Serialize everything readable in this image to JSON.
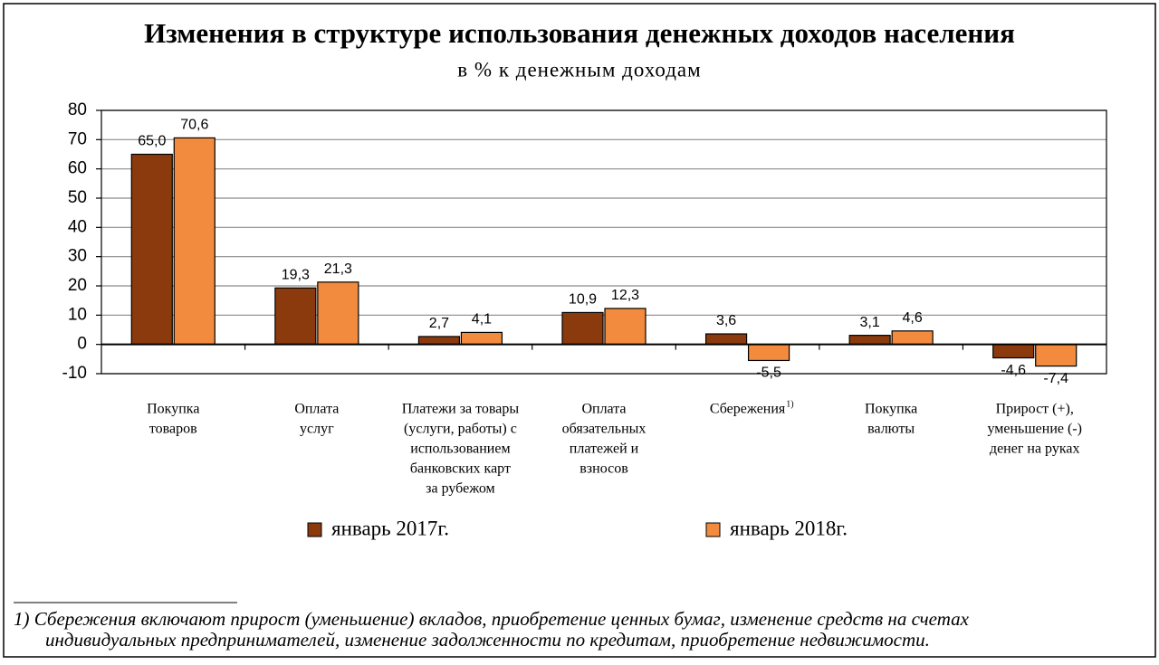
{
  "chart_data": {
    "type": "bar",
    "title": "Изменения в структуре использования денежных доходов населения",
    "subtitle": "в % к денежным доходам",
    "categories": [
      [
        "Покупка",
        "товаров"
      ],
      [
        "Оплата",
        "услуг"
      ],
      [
        "Платежи за товары",
        "(услуги, работы) с",
        "использованием",
        "банковских карт",
        "за рубежом"
      ],
      [
        "Оплата",
        "обязательных",
        "платежей и",
        "взносов"
      ],
      [
        "Сбережения"
      ],
      [
        "Покупка",
        "валюты"
      ],
      [
        "Прирост (+),",
        "уменьшение (-)",
        "денег на руках"
      ]
    ],
    "category_notes": [
      null,
      null,
      null,
      null,
      "1)",
      null,
      null
    ],
    "series": [
      {
        "name": "январь 2017г.",
        "color": "#8b3a0e",
        "values": [
          65.0,
          19.3,
          2.7,
          10.9,
          3.6,
          3.1,
          -4.6
        ],
        "value_labels": [
          "65,0",
          "19,3",
          "2,7",
          "10,9",
          "3,6",
          "3,1",
          "-4,6"
        ]
      },
      {
        "name": "январь 2018г.",
        "color": "#f28b3e",
        "values": [
          70.6,
          21.3,
          4.1,
          12.3,
          -5.5,
          4.6,
          -7.4
        ],
        "value_labels": [
          "70,6",
          "21,3",
          "4,1",
          "12,3",
          "-5,5",
          "4,6",
          "-7,4"
        ]
      }
    ],
    "ylim": [
      -10,
      80
    ],
    "yticks": [
      -10,
      0,
      10,
      20,
      30,
      40,
      50,
      60,
      70,
      80
    ],
    "grid": true,
    "legend": "bottom",
    "footnote": [
      "1) Сбережения включают прирост (уменьшение) вкладов, приобретение ценных бумаг, изменение средств на счетах",
      "индивидуальных предпринимателей, изменение задолженности по кредитам, приобретение недвижимости."
    ]
  }
}
